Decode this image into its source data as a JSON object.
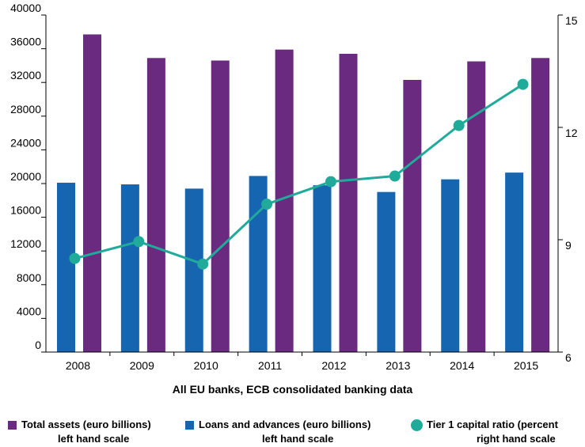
{
  "chart_data": {
    "type": "bar",
    "title": "All EU banks, ECB consolidated banking data",
    "categories": [
      "2008",
      "2009",
      "2010",
      "2011",
      "2012",
      "2013",
      "2014",
      "2015"
    ],
    "left_axis": {
      "ylim": [
        0,
        40000
      ],
      "ticks": [
        "0",
        "4000",
        "8000",
        "12000",
        "16000",
        "20000",
        "24000",
        "28000",
        "32000",
        "36000",
        "40000"
      ]
    },
    "right_axis": {
      "ylim": [
        6,
        15
      ],
      "ticks": [
        "6",
        "9",
        "12",
        "15"
      ]
    },
    "series": [
      {
        "name": "Loans and advances (euro billions)",
        "scale": "left hand scale",
        "type": "bar",
        "color": "#1565b0",
        "values": [
          20100,
          19900,
          19400,
          20900,
          19800,
          19000,
          20500,
          21300
        ]
      },
      {
        "name": "Total assets (euro billions)",
        "scale": "left hand scale",
        "type": "bar",
        "color": "#6a2a80",
        "values": [
          37700,
          34900,
          34600,
          35900,
          35400,
          32300,
          34500,
          34900
        ]
      },
      {
        "name": "Tier 1 capital ratio (percent",
        "scale": "right hand scale",
        "type": "line",
        "color": "#20aa9a",
        "values": [
          8.5,
          8.95,
          8.35,
          9.95,
          10.55,
          10.7,
          12.05,
          13.15
        ]
      }
    ],
    "grid": false
  }
}
